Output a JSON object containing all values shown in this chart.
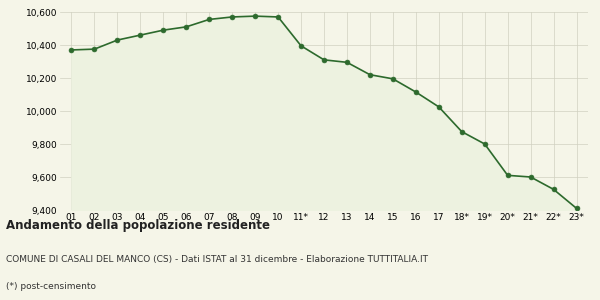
{
  "x_labels": [
    "01",
    "02",
    "03",
    "04",
    "05",
    "06",
    "07",
    "08",
    "09",
    "10",
    "11*",
    "12",
    "13",
    "14",
    "15",
    "16",
    "17",
    "18*",
    "19*",
    "20*",
    "21*",
    "22*",
    "23*"
  ],
  "y_values": [
    10370,
    10375,
    10430,
    10460,
    10490,
    10510,
    10555,
    10570,
    10575,
    10570,
    10395,
    10310,
    10295,
    10220,
    10195,
    10115,
    10025,
    9875,
    9800,
    9610,
    9600,
    9525,
    9410
  ],
  "ylim": [
    9400,
    10600
  ],
  "yticks": [
    9400,
    9600,
    9800,
    10000,
    10200,
    10400,
    10600
  ],
  "line_color": "#2d6a2d",
  "fill_color": "#edf2e0",
  "marker_color": "#2d6a2d",
  "bg_color": "#f5f5e8",
  "grid_color": "#d0d0c0",
  "title": "Andamento della popolazione residente",
  "subtitle": "COMUNE DI CASALI DEL MANCO (CS) - Dati ISTAT al 31 dicembre - Elaborazione TUTTITALIA.IT",
  "footnote": "(*) post-censimento",
  "title_fontsize": 8.5,
  "subtitle_fontsize": 6.5,
  "footnote_fontsize": 6.5
}
